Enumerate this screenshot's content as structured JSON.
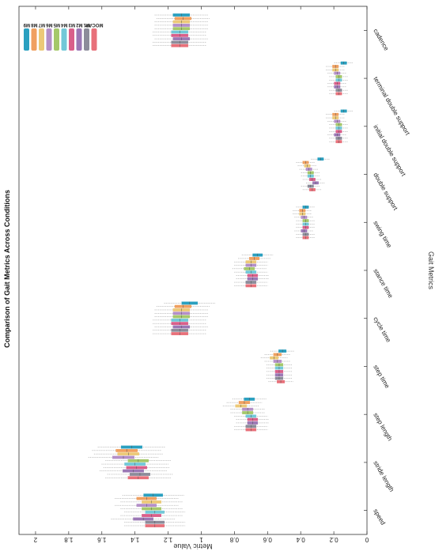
{
  "chart_data": {
    "type": "boxplot",
    "orientation": "rotated",
    "title": "Comparison of Gait Metrics Across Conditions",
    "xlabel": "Gait Metrics",
    "ylabel": "Metric Value",
    "ylim": [
      0,
      2.1
    ],
    "yticks": [
      0,
      0.2,
      0.4,
      0.6,
      0.8,
      1,
      1.2,
      1.4,
      1.6,
      1.8,
      2
    ],
    "ytick_labels": [
      "0",
      "0.2",
      "0.4",
      "0.6",
      "0.8",
      "1",
      "1.2",
      "1.4",
      "1.6",
      "1.8",
      "2"
    ],
    "grid": false,
    "legend_position": "top-right",
    "categories": [
      "speed",
      "stride length",
      "step length",
      "step time",
      "cycle time",
      "stance time",
      "swing time",
      "double support",
      "initial double support",
      "terminal double support",
      "cadence"
    ],
    "series": [
      {
        "name": "MOCAP",
        "color": "#e8707a",
        "medians": [
          1.28,
          1.38,
          0.7,
          0.52,
          1.13,
          0.7,
          0.37,
          0.33,
          0.17,
          0.17,
          1.13
        ]
      },
      {
        "name": "M1",
        "color": "#8c8c9a",
        "medians": [
          1.28,
          1.37,
          0.7,
          0.53,
          1.13,
          0.7,
          0.37,
          0.34,
          0.17,
          0.17,
          1.13
        ]
      },
      {
        "name": "M2",
        "color": "#9b77b5",
        "medians": [
          1.35,
          1.41,
          0.69,
          0.53,
          1.12,
          0.69,
          0.38,
          0.31,
          0.18,
          0.18,
          1.12
        ]
      },
      {
        "name": "M3",
        "color": "#d95f8a",
        "medians": [
          1.3,
          1.39,
          0.69,
          0.53,
          1.13,
          0.69,
          0.37,
          0.33,
          0.17,
          0.18,
          1.13
        ]
      },
      {
        "name": "M4",
        "color": "#72c8d8",
        "medians": [
          1.28,
          1.4,
          0.7,
          0.53,
          1.13,
          0.7,
          0.37,
          0.34,
          0.17,
          0.17,
          1.13
        ]
      },
      {
        "name": "M5",
        "color": "#a5c86a",
        "medians": [
          1.3,
          1.38,
          0.72,
          0.53,
          1.12,
          0.71,
          0.37,
          0.34,
          0.17,
          0.17,
          1.12
        ]
      },
      {
        "name": "M6",
        "color": "#b48fc8",
        "medians": [
          1.33,
          1.47,
          0.72,
          0.54,
          1.12,
          0.7,
          0.38,
          0.35,
          0.18,
          0.18,
          1.12
        ]
      },
      {
        "name": "M7",
        "color": "#ecc978",
        "medians": [
          1.3,
          1.44,
          0.76,
          0.56,
          1.12,
          0.7,
          0.39,
          0.36,
          0.19,
          0.19,
          1.12
        ]
      },
      {
        "name": "M8",
        "color": "#f0a060",
        "medians": [
          1.33,
          1.45,
          0.74,
          0.54,
          1.11,
          0.68,
          0.39,
          0.37,
          0.19,
          0.19,
          1.11
        ]
      },
      {
        "name": "M9",
        "color": "#2aa0c0",
        "medians": [
          1.29,
          1.42,
          0.71,
          0.51,
          1.07,
          0.66,
          0.37,
          0.28,
          0.14,
          0.14,
          1.12
        ]
      }
    ]
  }
}
